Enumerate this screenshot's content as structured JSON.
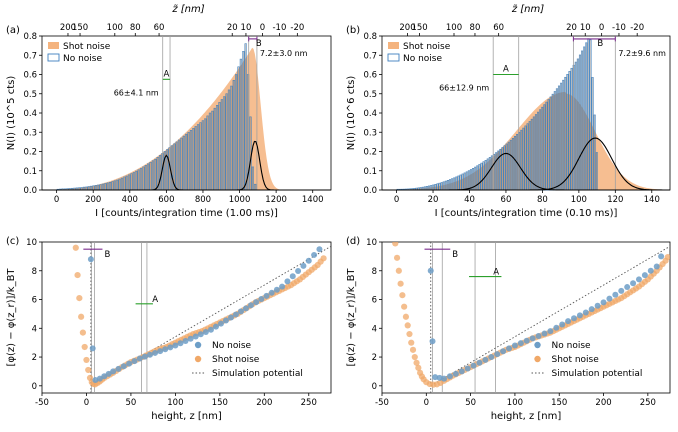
{
  "colors": {
    "shot": "#f4b37e",
    "shot_dot": "#f0a868",
    "blue": "#3d7fbf",
    "blue_dot": "#6d9ec7",
    "green": "#2ca02c",
    "purple": "#7b2d8e",
    "gray": "#a0a0a0",
    "black": "#000000",
    "dotline": "#555555"
  },
  "chart_data": [
    {
      "type": "bar",
      "panel_label": "(a)",
      "xlabel": "I [counts/integration time (1.00 ms)]",
      "ylabel": "N(I) (10^5 cts)",
      "top_xlabel": "z̃ [nm]",
      "xlim": [
        -80,
        1500
      ],
      "ylim": [
        0,
        0.8
      ],
      "xticks": [
        0,
        200,
        400,
        600,
        800,
        1000,
        1200,
        1400
      ],
      "yticks": [
        0.0,
        0.1,
        0.2,
        0.3,
        0.4,
        0.5,
        0.6,
        0.7,
        0.8
      ],
      "top_ticks": [
        {
          "label": "200",
          "at": 62
        },
        {
          "label": "150",
          "at": 128
        },
        {
          "label": "100",
          "at": 318
        },
        {
          "label": "80",
          "at": 430
        },
        {
          "label": "60",
          "at": 560
        },
        {
          "label": "20",
          "at": 960
        },
        {
          "label": "10",
          "at": 1035
        },
        {
          "label": "0",
          "at": 1125
        },
        {
          "label": "-10",
          "at": 1218
        },
        {
          "label": "-20",
          "at": 1316
        }
      ],
      "legend": {
        "position": "top-left",
        "entries": [
          "Shot noise",
          "No noise"
        ]
      },
      "histogram": {
        "start": 0,
        "bin": 13,
        "count": 100,
        "rise_end": 78,
        "fall_end": 84
      },
      "no_noise_bars": [
        0.004,
        0.005,
        0.006,
        0.006,
        0.007,
        0.008,
        0.009,
        0.01,
        0.011,
        0.012,
        0.013,
        0.015,
        0.016,
        0.018,
        0.02,
        0.022,
        0.024,
        0.026,
        0.028,
        0.031,
        0.034,
        0.037,
        0.04,
        0.044,
        0.048,
        0.052,
        0.057,
        0.062,
        0.068,
        0.073,
        0.079,
        0.085,
        0.091,
        0.098,
        0.105,
        0.112,
        0.12,
        0.128,
        0.136,
        0.144,
        0.152,
        0.16,
        0.17,
        0.18,
        0.19,
        0.2,
        0.21,
        0.22,
        0.23,
        0.24,
        0.25,
        0.26,
        0.27,
        0.28,
        0.29,
        0.3,
        0.31,
        0.32,
        0.33,
        0.34,
        0.35,
        0.36,
        0.37,
        0.385,
        0.4,
        0.41,
        0.425,
        0.44,
        0.455,
        0.47,
        0.485,
        0.5,
        0.52,
        0.54,
        0.57,
        0.6,
        0.64,
        0.68,
        0.72,
        0.76,
        0.6,
        0.38,
        0.12,
        0.03,
        0.0,
        0.0,
        0.0,
        0.0,
        0.0,
        0.0,
        0.0,
        0.0,
        0.0,
        0.0,
        0.0,
        0.0,
        0.0,
        0.0,
        0.0,
        0.0
      ],
      "shot_noise_profile": {
        "peak_position": 1070,
        "peak_value": 0.74,
        "tail_width": 45
      },
      "regions": {
        "A": {
          "label": "A",
          "value_text": "66±4.1 nm",
          "lines": [
            580,
            620
          ]
        },
        "B": {
          "label": "B",
          "value_text": "7.2±3.0 nm",
          "lines": [
            1050,
            1095
          ]
        }
      },
      "gaussians": [
        {
          "center": 600,
          "sigma": 22,
          "amplitude": 0.18
        },
        {
          "center": 1085,
          "sigma": 25,
          "amplitude": 0.255
        }
      ]
    },
    {
      "type": "bar",
      "panel_label": "(b)",
      "xlabel": "I [counts/integration time (0.10 ms)]",
      "ylabel": "N(I) (10^6 cts)",
      "top_xlabel": "z̃ [nm]",
      "xlim": [
        -8,
        150
      ],
      "ylim": [
        0,
        0.8
      ],
      "xticks": [
        0,
        20,
        40,
        60,
        80,
        100,
        120,
        140
      ],
      "yticks": [
        0.0,
        0.1,
        0.2,
        0.3,
        0.4,
        0.5,
        0.6,
        0.7,
        0.8
      ],
      "top_ticks": [
        {
          "label": "200",
          "at": 6
        },
        {
          "label": "150",
          "at": 12.6
        },
        {
          "label": "100",
          "at": 31.5
        },
        {
          "label": "80",
          "at": 43
        },
        {
          "label": "60",
          "at": 56
        },
        {
          "label": "20",
          "at": 96
        },
        {
          "label": "10",
          "at": 103.5
        },
        {
          "label": "0",
          "at": 112.5
        },
        {
          "label": "-10",
          "at": 122
        },
        {
          "label": "-20",
          "at": 132
        }
      ],
      "legend": {
        "position": "top-left",
        "entries": [
          "Shot noise",
          "No noise"
        ]
      },
      "histogram": {
        "start": 0,
        "bin": 1.15,
        "count": 110,
        "rise_end": 92,
        "fall_end": 96
      },
      "shot_noise_profile": {
        "peak_position": 93,
        "peak_value": 0.5,
        "tail_width": 16
      },
      "regions": {
        "A": {
          "label": "A",
          "value_text": "66±12.9 nm",
          "lines": [
            53,
            67
          ]
        },
        "B": {
          "label": "B",
          "value_text": "7.2±9.6 nm",
          "lines": [
            97,
            120
          ]
        }
      },
      "gaussians": [
        {
          "center": 60,
          "sigma": 8,
          "amplitude": 0.19
        },
        {
          "center": 109,
          "sigma": 9,
          "amplitude": 0.27
        }
      ]
    },
    {
      "type": "scatter",
      "panel_label": "(c)",
      "xlabel": "height, z [nm]",
      "ylabel": "[φ(z) − φ(z_r)]/k_BT",
      "xlim": [
        -50,
        275
      ],
      "ylim": [
        -0.5,
        10
      ],
      "xticks": [
        -50,
        0,
        50,
        100,
        150,
        200,
        250
      ],
      "yticks": [
        0,
        2,
        4,
        6,
        8,
        10
      ],
      "legend": {
        "position": "bottom-right",
        "entries": [
          "No noise",
          "Shot noise",
          "Simulation potential"
        ]
      },
      "no_noise": [
        [
          5,
          8.8
        ],
        [
          7,
          2.6
        ],
        [
          10,
          0.4
        ],
        [
          15,
          0.5
        ],
        [
          30,
          1.0
        ],
        [
          60,
          1.9
        ],
        [
          100,
          2.8
        ],
        [
          140,
          3.9
        ],
        [
          185,
          5.6
        ],
        [
          220,
          6.9
        ],
        [
          250,
          8.7
        ],
        [
          262,
          9.5
        ]
      ],
      "shot_noise": [
        [
          -12,
          9.6
        ],
        [
          -10,
          7.7
        ],
        [
          -8,
          6.1
        ],
        [
          -6,
          4.8
        ],
        [
          -4,
          3.7
        ],
        [
          -2,
          2.7
        ],
        [
          0,
          1.8
        ],
        [
          2,
          1.1
        ],
        [
          4,
          0.55
        ],
        [
          6,
          0.25
        ],
        [
          8,
          0.12
        ],
        [
          10,
          0.1
        ],
        [
          15,
          0.3
        ],
        [
          20,
          0.55
        ],
        [
          30,
          0.9
        ],
        [
          40,
          1.3
        ],
        [
          50,
          1.65
        ],
        [
          60,
          1.9
        ],
        [
          70,
          2.2
        ],
        [
          80,
          2.5
        ],
        [
          90,
          2.7
        ],
        [
          100,
          3.0
        ],
        [
          110,
          3.3
        ],
        [
          120,
          3.6
        ],
        [
          130,
          3.8
        ],
        [
          140,
          4.1
        ],
        [
          150,
          4.4
        ],
        [
          160,
          4.7
        ],
        [
          170,
          5.0
        ],
        [
          180,
          5.4
        ],
        [
          190,
          5.8
        ],
        [
          200,
          6.1
        ],
        [
          210,
          6.4
        ],
        [
          220,
          6.7
        ],
        [
          230,
          7.0
        ],
        [
          240,
          7.4
        ],
        [
          250,
          7.9
        ],
        [
          260,
          8.4
        ],
        [
          270,
          9.1
        ]
      ],
      "simulation": {
        "start": [
          5,
          0
        ],
        "end": [
          275,
          9.7
        ]
      },
      "regions": {
        "A": {
          "label": "A",
          "lines": [
            62,
            68
          ],
          "bar_y": 5.7
        },
        "B": {
          "label": "B",
          "lines": [
            5.5,
            9
          ],
          "bar_y": 9.5
        }
      }
    },
    {
      "type": "scatter",
      "panel_label": "(d)",
      "xlabel": "height, z [nm]",
      "ylabel": "[φ(z) − φ(z_r)]/k_BT",
      "xlim": [
        -50,
        275
      ],
      "ylim": [
        -0.5,
        10
      ],
      "xticks": [
        -50,
        0,
        50,
        100,
        150,
        200,
        250
      ],
      "yticks": [
        0,
        2,
        4,
        6,
        8,
        10
      ],
      "legend": {
        "position": "bottom-right",
        "entries": [
          "No noise",
          "Shot noise",
          "Simulation potential"
        ]
      },
      "no_noise": [
        [
          5,
          8.0
        ],
        [
          7,
          3.1
        ],
        [
          10,
          0.6
        ],
        [
          20,
          0.5
        ],
        [
          40,
          1.0
        ],
        [
          60,
          1.6
        ],
        [
          80,
          2.2
        ],
        [
          100,
          2.8
        ],
        [
          120,
          3.3
        ],
        [
          140,
          3.8
        ],
        [
          160,
          4.5
        ],
        [
          180,
          5.1
        ],
        [
          200,
          5.8
        ],
        [
          220,
          6.6
        ],
        [
          240,
          7.4
        ],
        [
          260,
          8.3
        ],
        [
          265,
          9.0
        ]
      ],
      "shot_noise": [
        [
          -35,
          9.9
        ],
        [
          -33,
          8.9
        ],
        [
          -31,
          8.0
        ],
        [
          -29,
          7.1
        ],
        [
          -27,
          6.3
        ],
        [
          -25,
          5.5
        ],
        [
          -23,
          4.8
        ],
        [
          -21,
          4.2
        ],
        [
          -19,
          3.6
        ],
        [
          -17,
          3.0
        ],
        [
          -15,
          2.5
        ],
        [
          -13,
          2.0
        ],
        [
          -11,
          1.6
        ],
        [
          -9,
          1.25
        ],
        [
          -7,
          0.9
        ],
        [
          -5,
          0.65
        ],
        [
          -3,
          0.45
        ],
        [
          0,
          0.25
        ],
        [
          4,
          0.12
        ],
        [
          8,
          0.08
        ],
        [
          12,
          0.1
        ],
        [
          16,
          0.2
        ],
        [
          20,
          0.35
        ],
        [
          30,
          0.7
        ],
        [
          40,
          1.0
        ],
        [
          50,
          1.3
        ],
        [
          60,
          1.6
        ],
        [
          70,
          1.9
        ],
        [
          80,
          2.2
        ],
        [
          90,
          2.5
        ],
        [
          100,
          2.7
        ],
        [
          110,
          3.0
        ],
        [
          120,
          3.3
        ],
        [
          130,
          3.5
        ],
        [
          140,
          3.7
        ],
        [
          150,
          4.0
        ],
        [
          160,
          4.3
        ],
        [
          170,
          4.6
        ],
        [
          180,
          4.9
        ],
        [
          190,
          5.2
        ],
        [
          200,
          5.5
        ],
        [
          210,
          5.8
        ],
        [
          220,
          6.1
        ],
        [
          230,
          6.5
        ],
        [
          240,
          6.9
        ],
        [
          250,
          7.4
        ],
        [
          260,
          8.0
        ],
        [
          270,
          8.7
        ],
        [
          275,
          9.2
        ]
      ],
      "simulation": {
        "start": [
          5,
          0
        ],
        "end": [
          275,
          9.7
        ]
      },
      "regions": {
        "A": {
          "label": "A",
          "lines": [
            55,
            78
          ],
          "bar_y": 7.6
        },
        "B": {
          "label": "B",
          "lines": [
            7,
            18
          ],
          "bar_y": 9.5
        }
      }
    }
  ]
}
